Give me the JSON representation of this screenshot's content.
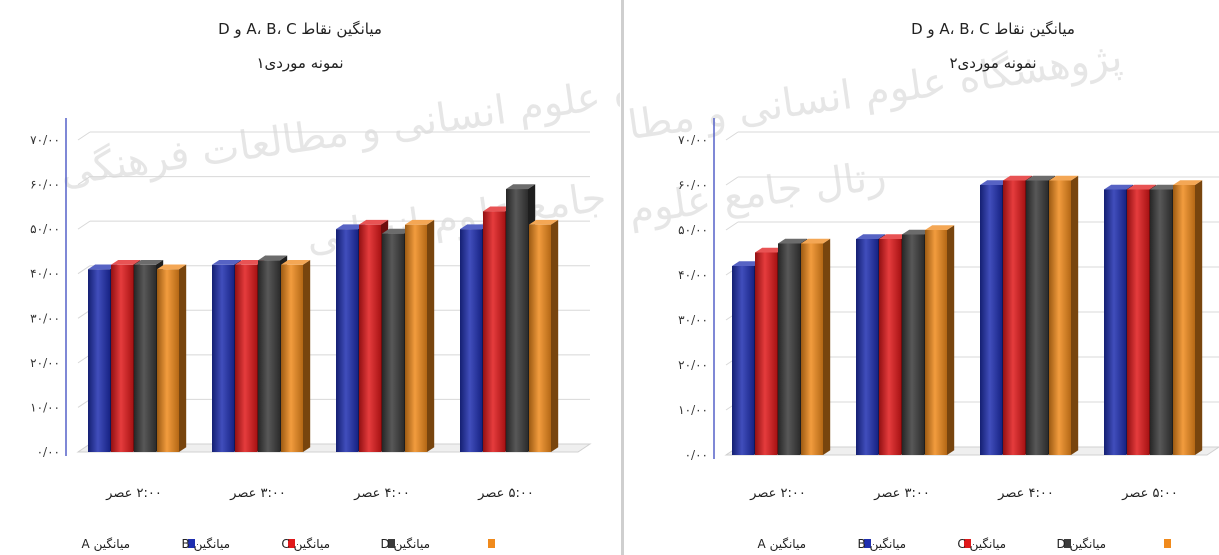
{
  "watermark": {
    "line1": "پژوهشگاه علوم انسانی و مطالعات فرهنگی",
    "line2": "رتال جامع علوم انسانی"
  },
  "colors": {
    "A": "#1f2fb0",
    "B": "#e0191b",
    "C": "#3b3b3b",
    "D": "#f08a1c"
  },
  "chart_data": [
    {
      "type": "bar",
      "title": "میانگین نقاط A، B، C و D",
      "subtitle": "نمونه موردی۱",
      "categories": [
        "۲:۰۰ عصر",
        "۳:۰۰ عصر",
        "۴:۰۰ عصر",
        "۵:۰۰ عصر"
      ],
      "ytick_labels": [
        "۰/۰۰",
        "۱۰/۰۰",
        "۲۰/۰۰",
        "۳۰/۰۰",
        "۴۰/۰۰",
        "۵۰/۰۰",
        "۶۰/۰۰",
        "۷۰/۰۰"
      ],
      "ylim": [
        0,
        70
      ],
      "grid": true,
      "legend_position": "bottom",
      "series": [
        {
          "key": "A",
          "name": "میانگین A",
          "values": [
            41,
            42,
            50,
            50
          ]
        },
        {
          "key": "B",
          "name": "میانگین B",
          "values": [
            42,
            42,
            51,
            54
          ]
        },
        {
          "key": "C",
          "name": "میانگین C",
          "values": [
            42,
            43,
            49,
            59
          ]
        },
        {
          "key": "D",
          "name": "میانگین D",
          "values": [
            41,
            42,
            51,
            51
          ]
        }
      ]
    },
    {
      "type": "bar",
      "title": "میانگین نقاط A، B، C و D",
      "subtitle": "نمونه موردی۲",
      "categories": [
        "۲:۰۰ عصر",
        "۳:۰۰ عصر",
        "۴:۰۰ عصر",
        "۵:۰۰ عصر"
      ],
      "ytick_labels": [
        "۰/۰۰",
        "۱۰/۰۰",
        "۲۰/۰۰",
        "۳۰/۰۰",
        "۴۰/۰۰",
        "۵۰/۰۰",
        "۶۰/۰۰",
        "۷۰/۰۰"
      ],
      "ylim": [
        0,
        70
      ],
      "grid": true,
      "legend_position": "bottom",
      "series": [
        {
          "key": "A",
          "name": "میانگین A",
          "values": [
            42,
            48,
            60,
            59
          ]
        },
        {
          "key": "B",
          "name": "میانگین B",
          "values": [
            45,
            48,
            61,
            59
          ]
        },
        {
          "key": "C",
          "name": "میانگین C",
          "values": [
            47,
            49,
            61,
            59
          ]
        },
        {
          "key": "D",
          "name": "میانگین D",
          "values": [
            47,
            50,
            61,
            60
          ]
        }
      ]
    }
  ]
}
